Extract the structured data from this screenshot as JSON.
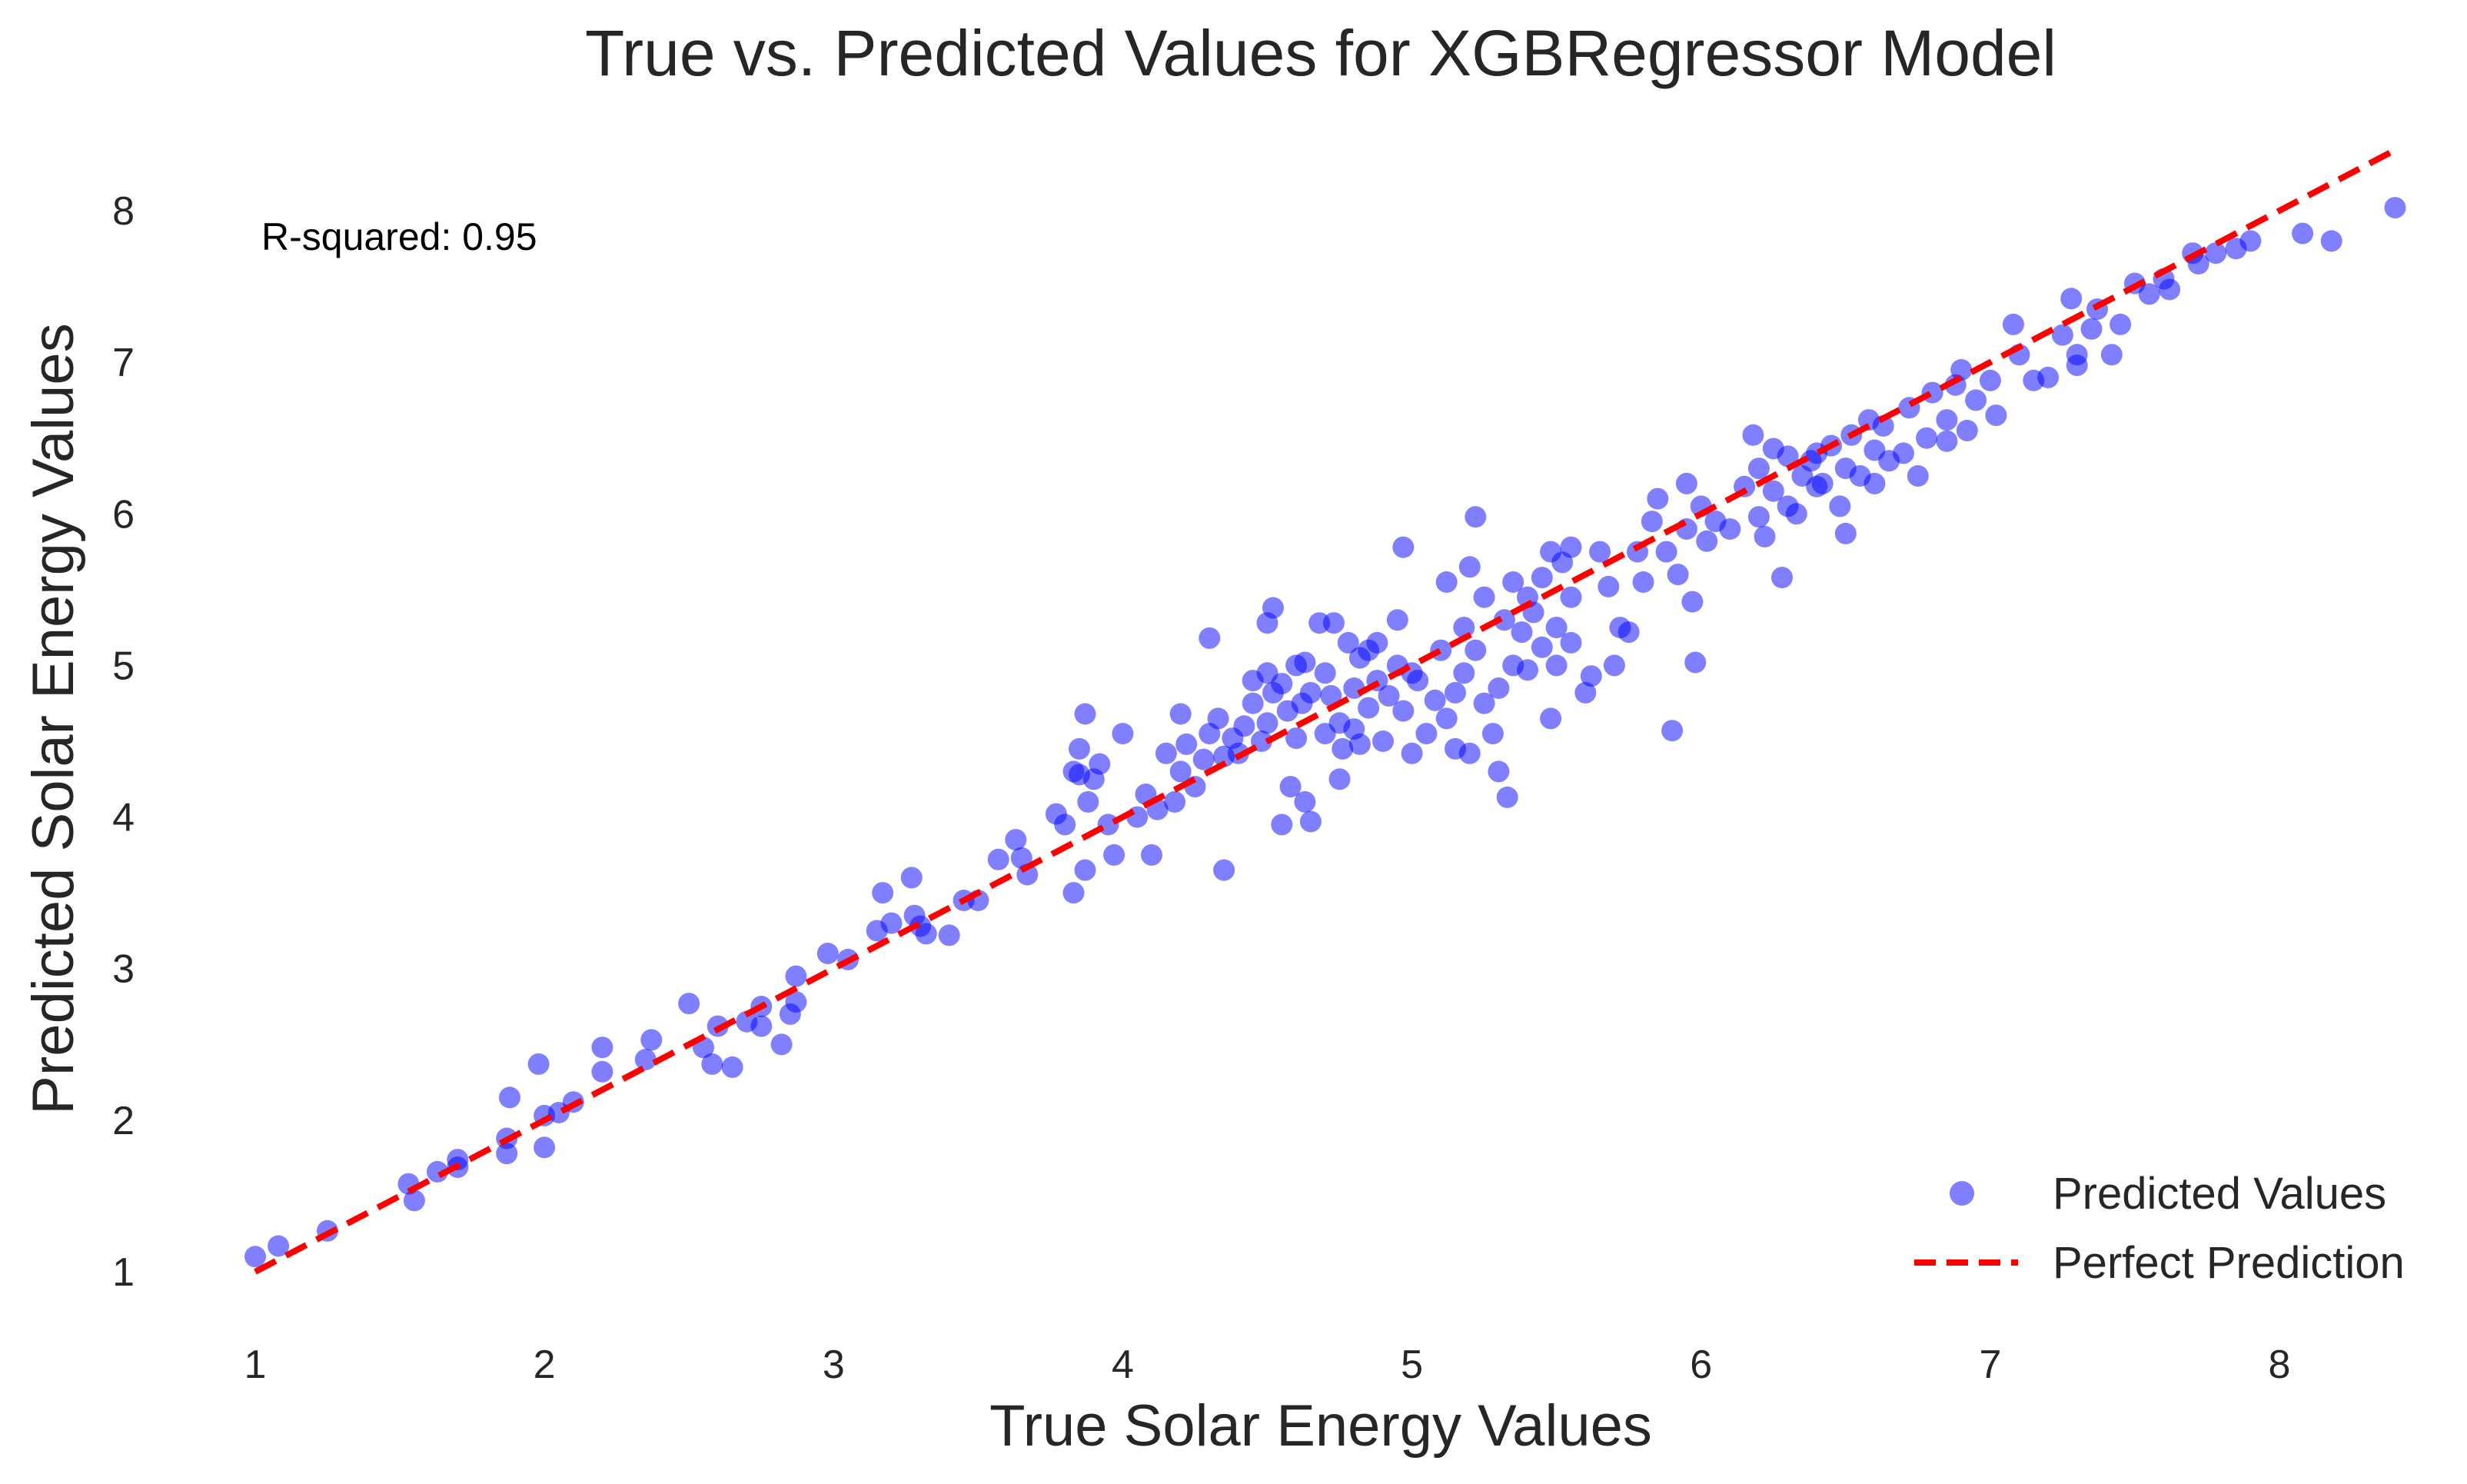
{
  "chart_data": {
    "type": "scatter",
    "title": "True vs. Predicted Values for XGBRegressor Model",
    "xlabel": "True Solar Energy Values",
    "ylabel": "Predicted Solar Energy Values",
    "xlim": [
      0.9,
      8.5
    ],
    "ylim": [
      0.7,
      8.4
    ],
    "x_ticks": [
      1,
      2,
      3,
      4,
      5,
      6,
      7,
      8
    ],
    "y_ticks": [
      1,
      2,
      3,
      4,
      5,
      6,
      7,
      8
    ],
    "x_tick_labels": [
      "1",
      "2",
      "3",
      "4",
      "5",
      "6",
      "7",
      "8"
    ],
    "y_tick_labels": [
      "1",
      "2",
      "3",
      "4",
      "5",
      "6",
      "7",
      "8"
    ],
    "grid": false,
    "annotation": "R-squared: 0.95",
    "legend": {
      "position": "bottom-right",
      "entries": [
        {
          "label": "Predicted Values",
          "kind": "marker",
          "color": "#0000ff"
        },
        {
          "label": "Perfect Prediction",
          "kind": "dashed-line",
          "color": "#ff0000"
        }
      ]
    },
    "series": [
      {
        "name": "Predicted Values",
        "kind": "scatter",
        "color": "#0000ff",
        "opacity": 0.5,
        "points": [
          [
            1.0,
            1.1
          ],
          [
            1.08,
            1.17
          ],
          [
            1.25,
            1.27
          ],
          [
            1.53,
            1.58
          ],
          [
            1.55,
            1.47
          ],
          [
            1.63,
            1.66
          ],
          [
            1.7,
            1.74
          ],
          [
            1.7,
            1.69
          ],
          [
            1.87,
            1.88
          ],
          [
            1.87,
            1.78
          ],
          [
            1.88,
            2.15
          ],
          [
            1.98,
            2.37
          ],
          [
            2.0,
            1.82
          ],
          [
            2.0,
            2.03
          ],
          [
            2.05,
            2.05
          ],
          [
            2.1,
            2.12
          ],
          [
            2.2,
            2.32
          ],
          [
            2.2,
            2.48
          ],
          [
            2.35,
            2.4
          ],
          [
            2.37,
            2.53
          ],
          [
            2.5,
            2.77
          ],
          [
            2.55,
            2.48
          ],
          [
            2.58,
            2.37
          ],
          [
            2.6,
            2.62
          ],
          [
            2.65,
            2.35
          ],
          [
            2.7,
            2.65
          ],
          [
            2.75,
            2.75
          ],
          [
            2.75,
            2.62
          ],
          [
            2.82,
            2.5
          ],
          [
            2.85,
            2.7
          ],
          [
            2.87,
            2.78
          ],
          [
            2.87,
            2.95
          ],
          [
            2.98,
            3.1
          ],
          [
            3.05,
            3.06
          ],
          [
            3.15,
            3.25
          ],
          [
            3.17,
            3.5
          ],
          [
            3.2,
            3.3
          ],
          [
            3.27,
            3.6
          ],
          [
            3.28,
            3.35
          ],
          [
            3.3,
            3.28
          ],
          [
            3.32,
            3.23
          ],
          [
            3.4,
            3.22
          ],
          [
            3.45,
            3.45
          ],
          [
            3.5,
            3.45
          ],
          [
            3.57,
            3.72
          ],
          [
            3.63,
            3.85
          ],
          [
            3.65,
            3.73
          ],
          [
            3.67,
            3.62
          ],
          [
            3.77,
            4.02
          ],
          [
            3.8,
            3.95
          ],
          [
            3.83,
            3.5
          ],
          [
            3.83,
            4.3
          ],
          [
            3.85,
            4.45
          ],
          [
            3.85,
            4.28
          ],
          [
            3.87,
            3.65
          ],
          [
            3.87,
            4.68
          ],
          [
            3.88,
            4.1
          ],
          [
            3.9,
            4.25
          ],
          [
            3.92,
            4.35
          ],
          [
            3.95,
            3.95
          ],
          [
            3.97,
            3.75
          ],
          [
            4.0,
            4.55
          ],
          [
            4.05,
            4.0
          ],
          [
            4.08,
            4.15
          ],
          [
            4.1,
            3.75
          ],
          [
            4.12,
            4.05
          ],
          [
            4.15,
            4.42
          ],
          [
            4.18,
            4.1
          ],
          [
            4.2,
            4.68
          ],
          [
            4.2,
            4.3
          ],
          [
            4.22,
            4.48
          ],
          [
            4.25,
            4.2
          ],
          [
            4.28,
            4.38
          ],
          [
            4.3,
            4.55
          ],
          [
            4.3,
            5.18
          ],
          [
            4.33,
            4.65
          ],
          [
            4.35,
            4.4
          ],
          [
            4.35,
            3.65
          ],
          [
            4.38,
            4.52
          ],
          [
            4.4,
            4.42
          ],
          [
            4.42,
            4.6
          ],
          [
            4.45,
            4.9
          ],
          [
            4.45,
            4.75
          ],
          [
            4.48,
            4.5
          ],
          [
            4.5,
            4.95
          ],
          [
            4.5,
            4.62
          ],
          [
            4.5,
            5.28
          ],
          [
            4.52,
            4.82
          ],
          [
            4.52,
            5.38
          ],
          [
            4.55,
            3.95
          ],
          [
            4.55,
            4.88
          ],
          [
            4.57,
            4.7
          ],
          [
            4.58,
            4.2
          ],
          [
            4.6,
            5.0
          ],
          [
            4.6,
            4.52
          ],
          [
            4.62,
            4.75
          ],
          [
            4.63,
            4.1
          ],
          [
            4.63,
            5.02
          ],
          [
            4.65,
            3.97
          ],
          [
            4.65,
            4.82
          ],
          [
            4.68,
            5.28
          ],
          [
            4.7,
            4.55
          ],
          [
            4.7,
            4.95
          ],
          [
            4.72,
            4.8
          ],
          [
            4.73,
            5.28
          ],
          [
            4.75,
            4.62
          ],
          [
            4.75,
            4.25
          ],
          [
            4.76,
            4.45
          ],
          [
            4.78,
            5.15
          ],
          [
            4.8,
            4.58
          ],
          [
            4.8,
            4.85
          ],
          [
            4.82,
            5.05
          ],
          [
            4.82,
            4.48
          ],
          [
            4.85,
            5.1
          ],
          [
            4.85,
            4.72
          ],
          [
            4.88,
            4.9
          ],
          [
            4.88,
            5.15
          ],
          [
            4.9,
            4.5
          ],
          [
            4.92,
            4.8
          ],
          [
            4.95,
            5.0
          ],
          [
            4.95,
            5.3
          ],
          [
            4.97,
            4.7
          ],
          [
            4.97,
            5.78
          ],
          [
            5.0,
            4.95
          ],
          [
            5.0,
            4.42
          ],
          [
            5.02,
            4.9
          ],
          [
            5.05,
            4.55
          ],
          [
            5.08,
            4.77
          ],
          [
            5.1,
            5.1
          ],
          [
            5.12,
            4.65
          ],
          [
            5.12,
            5.55
          ],
          [
            5.15,
            4.82
          ],
          [
            5.15,
            4.45
          ],
          [
            5.18,
            5.25
          ],
          [
            5.18,
            4.95
          ],
          [
            5.2,
            4.42
          ],
          [
            5.2,
            5.65
          ],
          [
            5.22,
            5.1
          ],
          [
            5.22,
            5.98
          ],
          [
            5.25,
            4.75
          ],
          [
            5.25,
            5.45
          ],
          [
            5.28,
            4.55
          ],
          [
            5.3,
            4.3
          ],
          [
            5.3,
            4.85
          ],
          [
            5.32,
            5.3
          ],
          [
            5.33,
            4.13
          ],
          [
            5.35,
            5.55
          ],
          [
            5.35,
            5.0
          ],
          [
            5.38,
            5.22
          ],
          [
            5.4,
            5.45
          ],
          [
            5.4,
            4.97
          ],
          [
            5.42,
            5.35
          ],
          [
            5.45,
            5.12
          ],
          [
            5.45,
            5.58
          ],
          [
            5.48,
            4.65
          ],
          [
            5.48,
            5.75
          ],
          [
            5.5,
            5.25
          ],
          [
            5.5,
            5.0
          ],
          [
            5.52,
            5.68
          ],
          [
            5.55,
            5.45
          ],
          [
            5.55,
            5.78
          ],
          [
            5.55,
            5.15
          ],
          [
            5.6,
            4.82
          ],
          [
            5.62,
            4.93
          ],
          [
            5.65,
            5.75
          ],
          [
            5.68,
            5.52
          ],
          [
            5.7,
            5.0
          ],
          [
            5.72,
            5.25
          ],
          [
            5.75,
            5.22
          ],
          [
            5.78,
            5.75
          ],
          [
            5.8,
            5.55
          ],
          [
            5.83,
            5.95
          ],
          [
            5.85,
            6.1
          ],
          [
            5.88,
            5.75
          ],
          [
            5.9,
            4.57
          ],
          [
            5.92,
            5.6
          ],
          [
            5.95,
            5.9
          ],
          [
            5.95,
            6.2
          ],
          [
            5.97,
            5.42
          ],
          [
            5.98,
            5.02
          ],
          [
            6.0,
            6.05
          ],
          [
            6.02,
            5.82
          ],
          [
            6.05,
            5.95
          ],
          [
            6.1,
            5.9
          ],
          [
            6.15,
            6.18
          ],
          [
            6.18,
            6.52
          ],
          [
            6.2,
            5.98
          ],
          [
            6.2,
            6.3
          ],
          [
            6.22,
            5.85
          ],
          [
            6.25,
            6.43
          ],
          [
            6.25,
            6.15
          ],
          [
            6.28,
            5.58
          ],
          [
            6.3,
            6.05
          ],
          [
            6.3,
            6.38
          ],
          [
            6.33,
            6.0
          ],
          [
            6.35,
            6.25
          ],
          [
            6.38,
            6.35
          ],
          [
            6.4,
            6.18
          ],
          [
            6.4,
            6.4
          ],
          [
            6.42,
            6.2
          ],
          [
            6.45,
            6.45
          ],
          [
            6.48,
            6.05
          ],
          [
            6.5,
            6.3
          ],
          [
            6.5,
            5.87
          ],
          [
            6.52,
            6.52
          ],
          [
            6.55,
            6.25
          ],
          [
            6.58,
            6.62
          ],
          [
            6.6,
            6.42
          ],
          [
            6.6,
            6.2
          ],
          [
            6.63,
            6.58
          ],
          [
            6.65,
            6.35
          ],
          [
            6.7,
            6.4
          ],
          [
            6.72,
            6.7
          ],
          [
            6.75,
            6.25
          ],
          [
            6.78,
            6.5
          ],
          [
            6.8,
            6.8
          ],
          [
            6.85,
            6.48
          ],
          [
            6.85,
            6.62
          ],
          [
            6.88,
            6.85
          ],
          [
            6.9,
            6.95
          ],
          [
            6.92,
            6.55
          ],
          [
            6.95,
            6.75
          ],
          [
            7.0,
            6.88
          ],
          [
            7.02,
            6.65
          ],
          [
            7.08,
            7.25
          ],
          [
            7.1,
            7.05
          ],
          [
            7.15,
            6.88
          ],
          [
            7.2,
            6.9
          ],
          [
            7.25,
            7.18
          ],
          [
            7.28,
            7.42
          ],
          [
            7.3,
            7.05
          ],
          [
            7.3,
            6.98
          ],
          [
            7.35,
            7.22
          ],
          [
            7.37,
            7.35
          ],
          [
            7.42,
            7.05
          ],
          [
            7.45,
            7.25
          ],
          [
            7.5,
            7.52
          ],
          [
            7.55,
            7.45
          ],
          [
            7.6,
            7.55
          ],
          [
            7.62,
            7.48
          ],
          [
            7.7,
            7.72
          ],
          [
            7.72,
            7.65
          ],
          [
            7.78,
            7.72
          ],
          [
            7.85,
            7.75
          ],
          [
            7.9,
            7.8
          ],
          [
            8.08,
            7.85
          ],
          [
            8.18,
            7.8
          ],
          [
            8.4,
            8.02
          ]
        ]
      },
      {
        "name": "Perfect Prediction",
        "kind": "line",
        "dashed": true,
        "color": "#ff0000",
        "points": [
          [
            1.0,
            1.0
          ],
          [
            8.4,
            8.4
          ]
        ]
      }
    ]
  }
}
